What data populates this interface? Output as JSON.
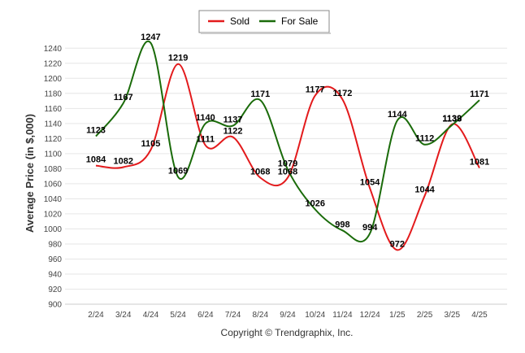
{
  "chart_data": {
    "type": "line",
    "title": "",
    "xlabel": "",
    "ylabel": "Average Price (in $,000)",
    "categories": [
      "2/24",
      "3/24",
      "4/24",
      "5/24",
      "6/24",
      "7/24",
      "8/24",
      "9/24",
      "10/24",
      "11/24",
      "12/24",
      "1/25",
      "2/25",
      "3/25",
      "4/25"
    ],
    "series": [
      {
        "name": "Sold",
        "color": "#e31a1c",
        "values": [
          1084,
          1082,
          1105,
          1219,
          1111,
          1122,
          1068,
          1068,
          1177,
          1172,
          1054,
          972,
          1044,
          1139,
          1081
        ]
      },
      {
        "name": "For Sale",
        "color": "#1a6b0a",
        "values": [
          1123,
          1167,
          1247,
          1069,
          1140,
          1137,
          1171,
          1079,
          1026,
          998,
          994,
          1144,
          1112,
          1138,
          1171
        ]
      }
    ],
    "ylim": [
      900,
      1250
    ],
    "yticks": [
      900,
      920,
      940,
      960,
      980,
      1000,
      1020,
      1040,
      1060,
      1080,
      1100,
      1120,
      1140,
      1160,
      1180,
      1200,
      1220,
      1240
    ],
    "grid": true,
    "legend": "top-center"
  },
  "footer": {
    "credit": "Copyright © Trendgraphix, Inc."
  }
}
